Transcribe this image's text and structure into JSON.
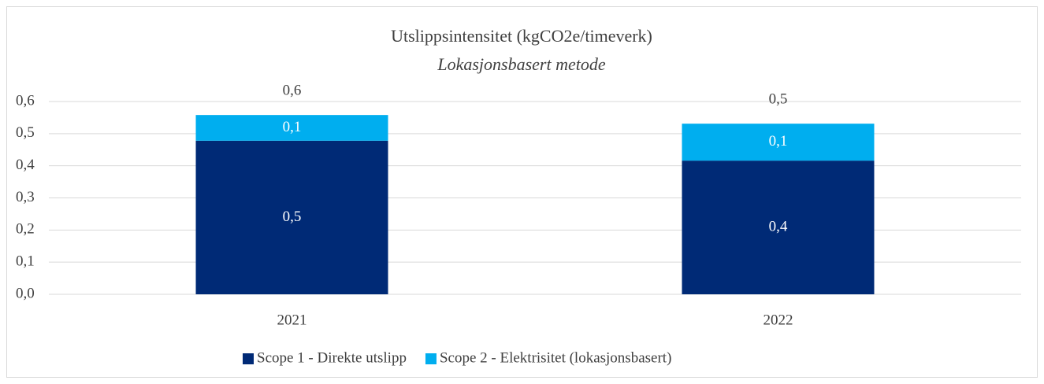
{
  "chart_data": {
    "type": "stacked_bar",
    "title": "Utslippsintensitet (kgCO2e/timeverk)",
    "subtitle": "Lokasjonsbasert metode",
    "categories": [
      "2021",
      "2022"
    ],
    "series": [
      {
        "name": "Scope 1 - Direkte utslipp",
        "color": "#002a76",
        "values": [
          0.478,
          0.416
        ],
        "value_labels": [
          "0,5",
          "0,4"
        ]
      },
      {
        "name": "Scope 2 - Elektrisitet (lokasjonsbasert)",
        "color": "#00aeef",
        "values": [
          0.08,
          0.115
        ],
        "value_labels": [
          "0,1",
          "0,1"
        ]
      }
    ],
    "totals": [
      0.558,
      0.531
    ],
    "total_labels": [
      "0,6",
      "0,5"
    ],
    "ylim": [
      0,
      0.6
    ],
    "yticks": [
      {
        "value": 0,
        "label": "0,0"
      },
      {
        "value": 0.1,
        "label": "0,1"
      },
      {
        "value": 0.2,
        "label": "0,2"
      },
      {
        "value": 0.3,
        "label": "0,3"
      },
      {
        "value": 0.4,
        "label": "0,4"
      },
      {
        "value": 0.5,
        "label": "0,5"
      },
      {
        "value": 0.6,
        "label": "0,6"
      }
    ],
    "grid": true,
    "legend": "bottom"
  }
}
